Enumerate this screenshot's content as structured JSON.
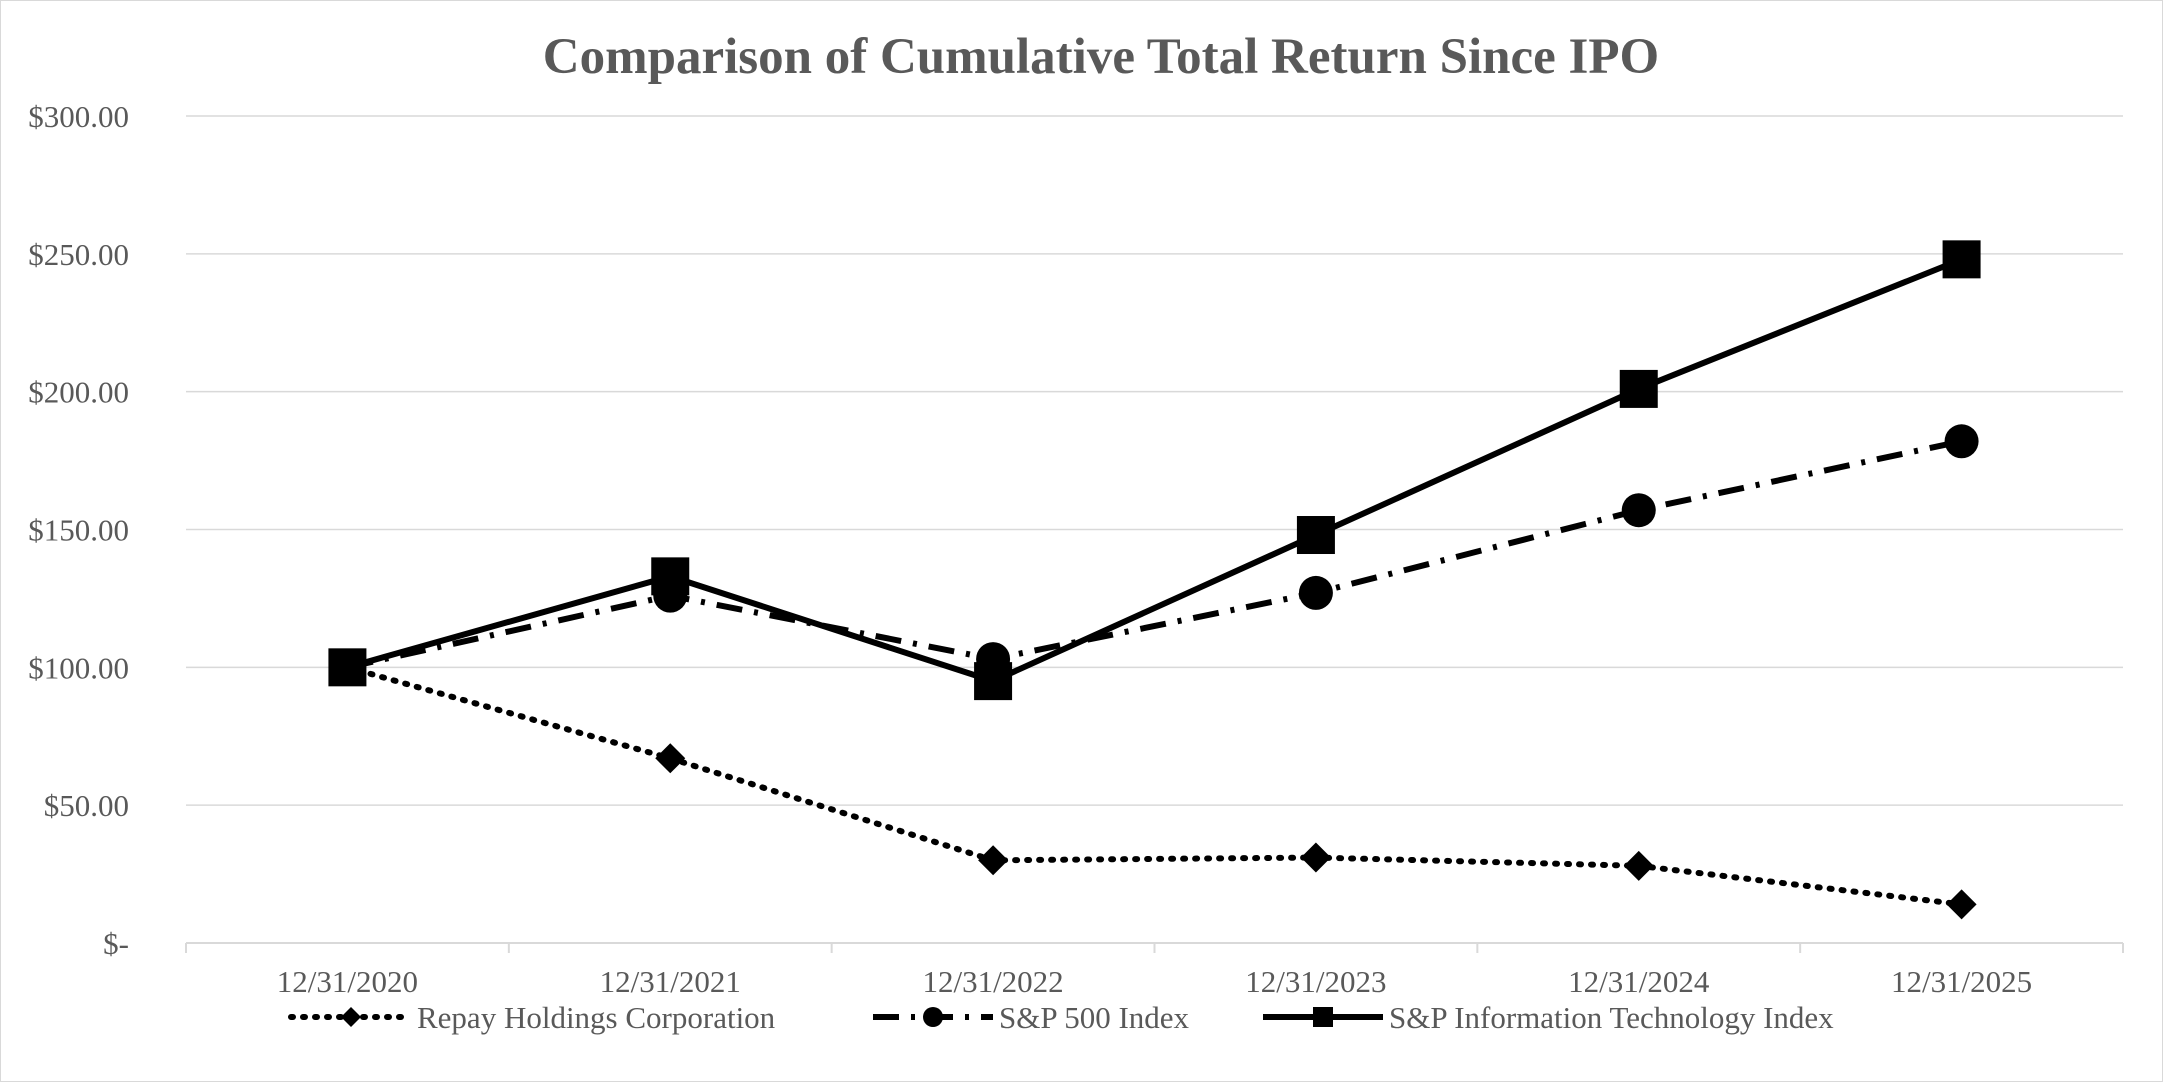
{
  "chart_data": {
    "type": "line",
    "title": "Comparison of Cumulative Total Return Since IPO",
    "categories": [
      "12/31/2020",
      "12/31/2021",
      "12/31/2022",
      "12/31/2023",
      "12/31/2024",
      "12/31/2025"
    ],
    "y_tick_labels": [
      "$-",
      "$50.00",
      "$100.00",
      "$150.00",
      "$200.00",
      "$250.00",
      "$300.00"
    ],
    "ylim": [
      0,
      300
    ],
    "y_tick_step": 50,
    "grid": true,
    "legend_position": "bottom",
    "series": [
      {
        "name": "Repay Holdings Corporation",
        "values": [
          100,
          67,
          30,
          31,
          28,
          14
        ],
        "line_style": "dotted",
        "marker": "diamond",
        "color": "#000000"
      },
      {
        "name": "S&P 500 Index",
        "values": [
          100,
          126,
          103,
          127,
          157,
          182
        ],
        "line_style": "dash-dot",
        "marker": "circle",
        "color": "#000000"
      },
      {
        "name": "S&P Information Technology Index",
        "values": [
          100,
          133,
          95,
          148,
          201,
          248
        ],
        "line_style": "solid",
        "marker": "square",
        "color": "#000000"
      }
    ]
  }
}
